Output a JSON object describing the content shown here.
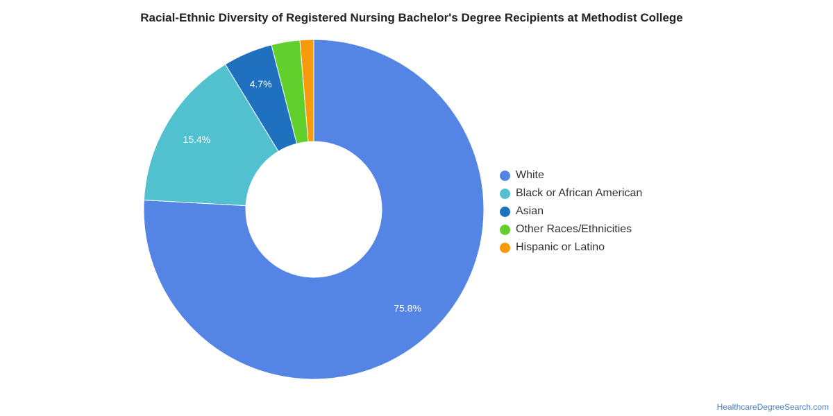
{
  "chart_data": {
    "type": "pie",
    "title": "Racial-Ethnic Diversity of Registered Nursing Bachelor's Degree Recipients at Methodist College",
    "categories": [
      "White",
      "Black or African American",
      "Asian",
      "Other Races/Ethnicities",
      "Hispanic or Latino"
    ],
    "values": [
      75.8,
      15.4,
      4.7,
      2.7,
      1.3
    ],
    "labels": [
      "75.8%",
      "15.4%",
      "4.7%",
      "",
      ""
    ],
    "colors": [
      "#5585e4",
      "#51c1cf",
      "#1f71bf",
      "#61cf2c",
      "#f79a0c"
    ],
    "legend_position": "right",
    "donut": true
  },
  "watermark": "HealthcareDegreeSearch.com"
}
